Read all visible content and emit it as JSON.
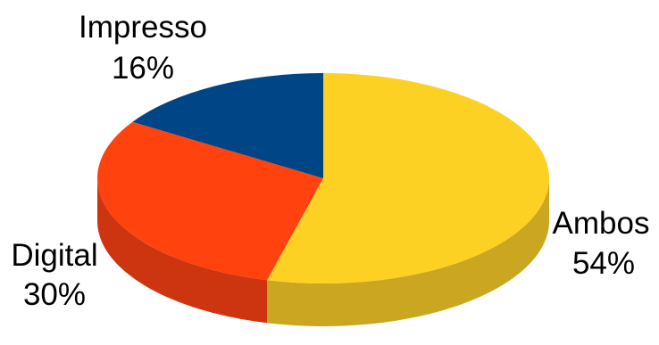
{
  "chart_data": {
    "type": "pie",
    "style": "3d",
    "title": "",
    "slices": [
      {
        "label": "Ambos",
        "value": 54,
        "value_label": "54%",
        "color": "#FCD123",
        "side_color": "#CBA620"
      },
      {
        "label": "Digital",
        "value": 30,
        "value_label": "30%",
        "color": "#FF420E",
        "side_color": "#CC3510"
      },
      {
        "label": "Impresso",
        "value": 16,
        "value_label": "16%",
        "color": "#004586",
        "side_color": "#003566"
      }
    ],
    "legend": "none"
  }
}
